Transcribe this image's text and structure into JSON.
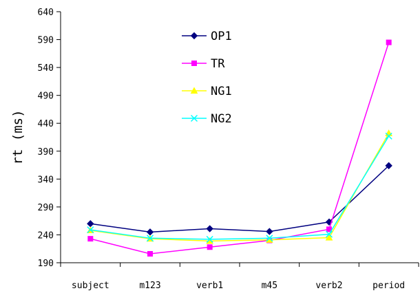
{
  "chart_data": {
    "type": "line",
    "title": "",
    "xlabel": "",
    "ylabel": "rt (ms)",
    "ylim": [
      190,
      640
    ],
    "y_ticks": [
      190,
      240,
      290,
      340,
      390,
      440,
      490,
      540,
      590,
      640
    ],
    "grid": false,
    "legend_position": "top-center",
    "categories": [
      "subject",
      "m123",
      "verb1",
      "m45",
      "verb2",
      "period"
    ],
    "series": [
      {
        "name": "OP1",
        "color": "#000080",
        "marker": "diamond",
        "values": [
          260,
          245,
          251,
          246,
          263,
          364
        ]
      },
      {
        "name": "TR",
        "color": "#ff00ff",
        "marker": "square",
        "values": [
          233,
          206,
          218,
          230,
          250,
          585
        ]
      },
      {
        "name": "NG1",
        "color": "#ffff00",
        "marker": "triangle",
        "values": [
          248,
          233,
          229,
          231,
          235,
          422
        ]
      },
      {
        "name": "NG2",
        "color": "#00ffff",
        "marker": "x",
        "values": [
          249,
          234,
          232,
          234,
          241,
          417
        ]
      }
    ]
  }
}
